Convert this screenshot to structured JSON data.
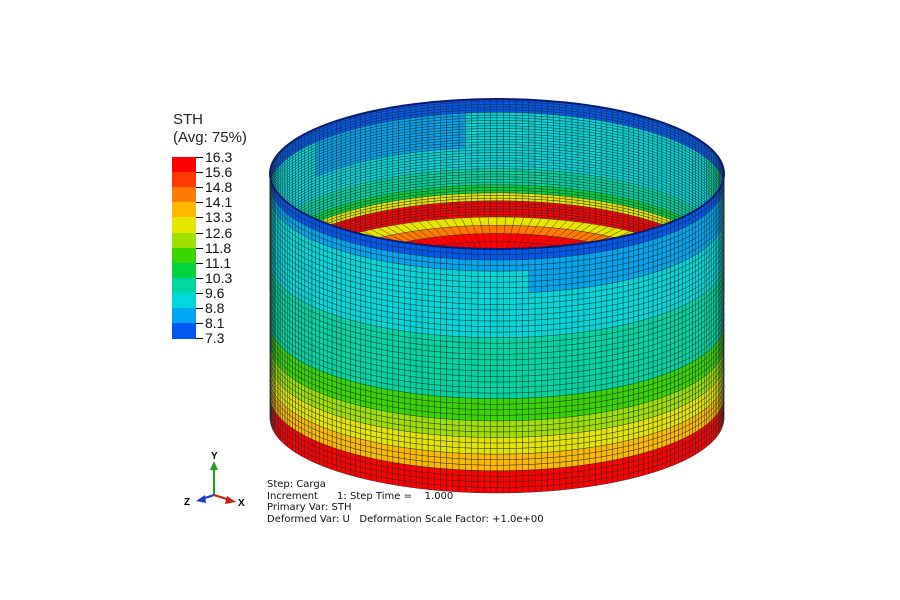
{
  "legend": {
    "title": "STH",
    "subtitle": "(Avg: 75%)",
    "entries": [
      {
        "value": "16.3",
        "color": "#ff0000"
      },
      {
        "value": "15.6",
        "color": "#ff3a00"
      },
      {
        "value": "14.8",
        "color": "#ff7a00"
      },
      {
        "value": "14.1",
        "color": "#ffba00"
      },
      {
        "value": "13.3",
        "color": "#e6e600"
      },
      {
        "value": "12.6",
        "color": "#9ee000"
      },
      {
        "value": "11.8",
        "color": "#3ad600"
      },
      {
        "value": "11.1",
        "color": "#00d240"
      },
      {
        "value": "10.3",
        "color": "#00d6a0"
      },
      {
        "value": "9.6",
        "color": "#00d8dc"
      },
      {
        "value": "8.8",
        "color": "#00a6f0"
      },
      {
        "value": "8.1",
        "color": "#0058f0"
      },
      {
        "value": "7.3",
        "color": "#0000f5"
      }
    ]
  },
  "triad": {
    "y_label": "Y",
    "z_label": "Z",
    "x_label": "X"
  },
  "info": {
    "line1": "Step: Carga",
    "line2": "Increment      1: Step Time =    1.000",
    "line3": "Primary Var: STH",
    "line4": "Deformed Var: U   Deformation Scale Factor: +1.0e+00"
  }
}
